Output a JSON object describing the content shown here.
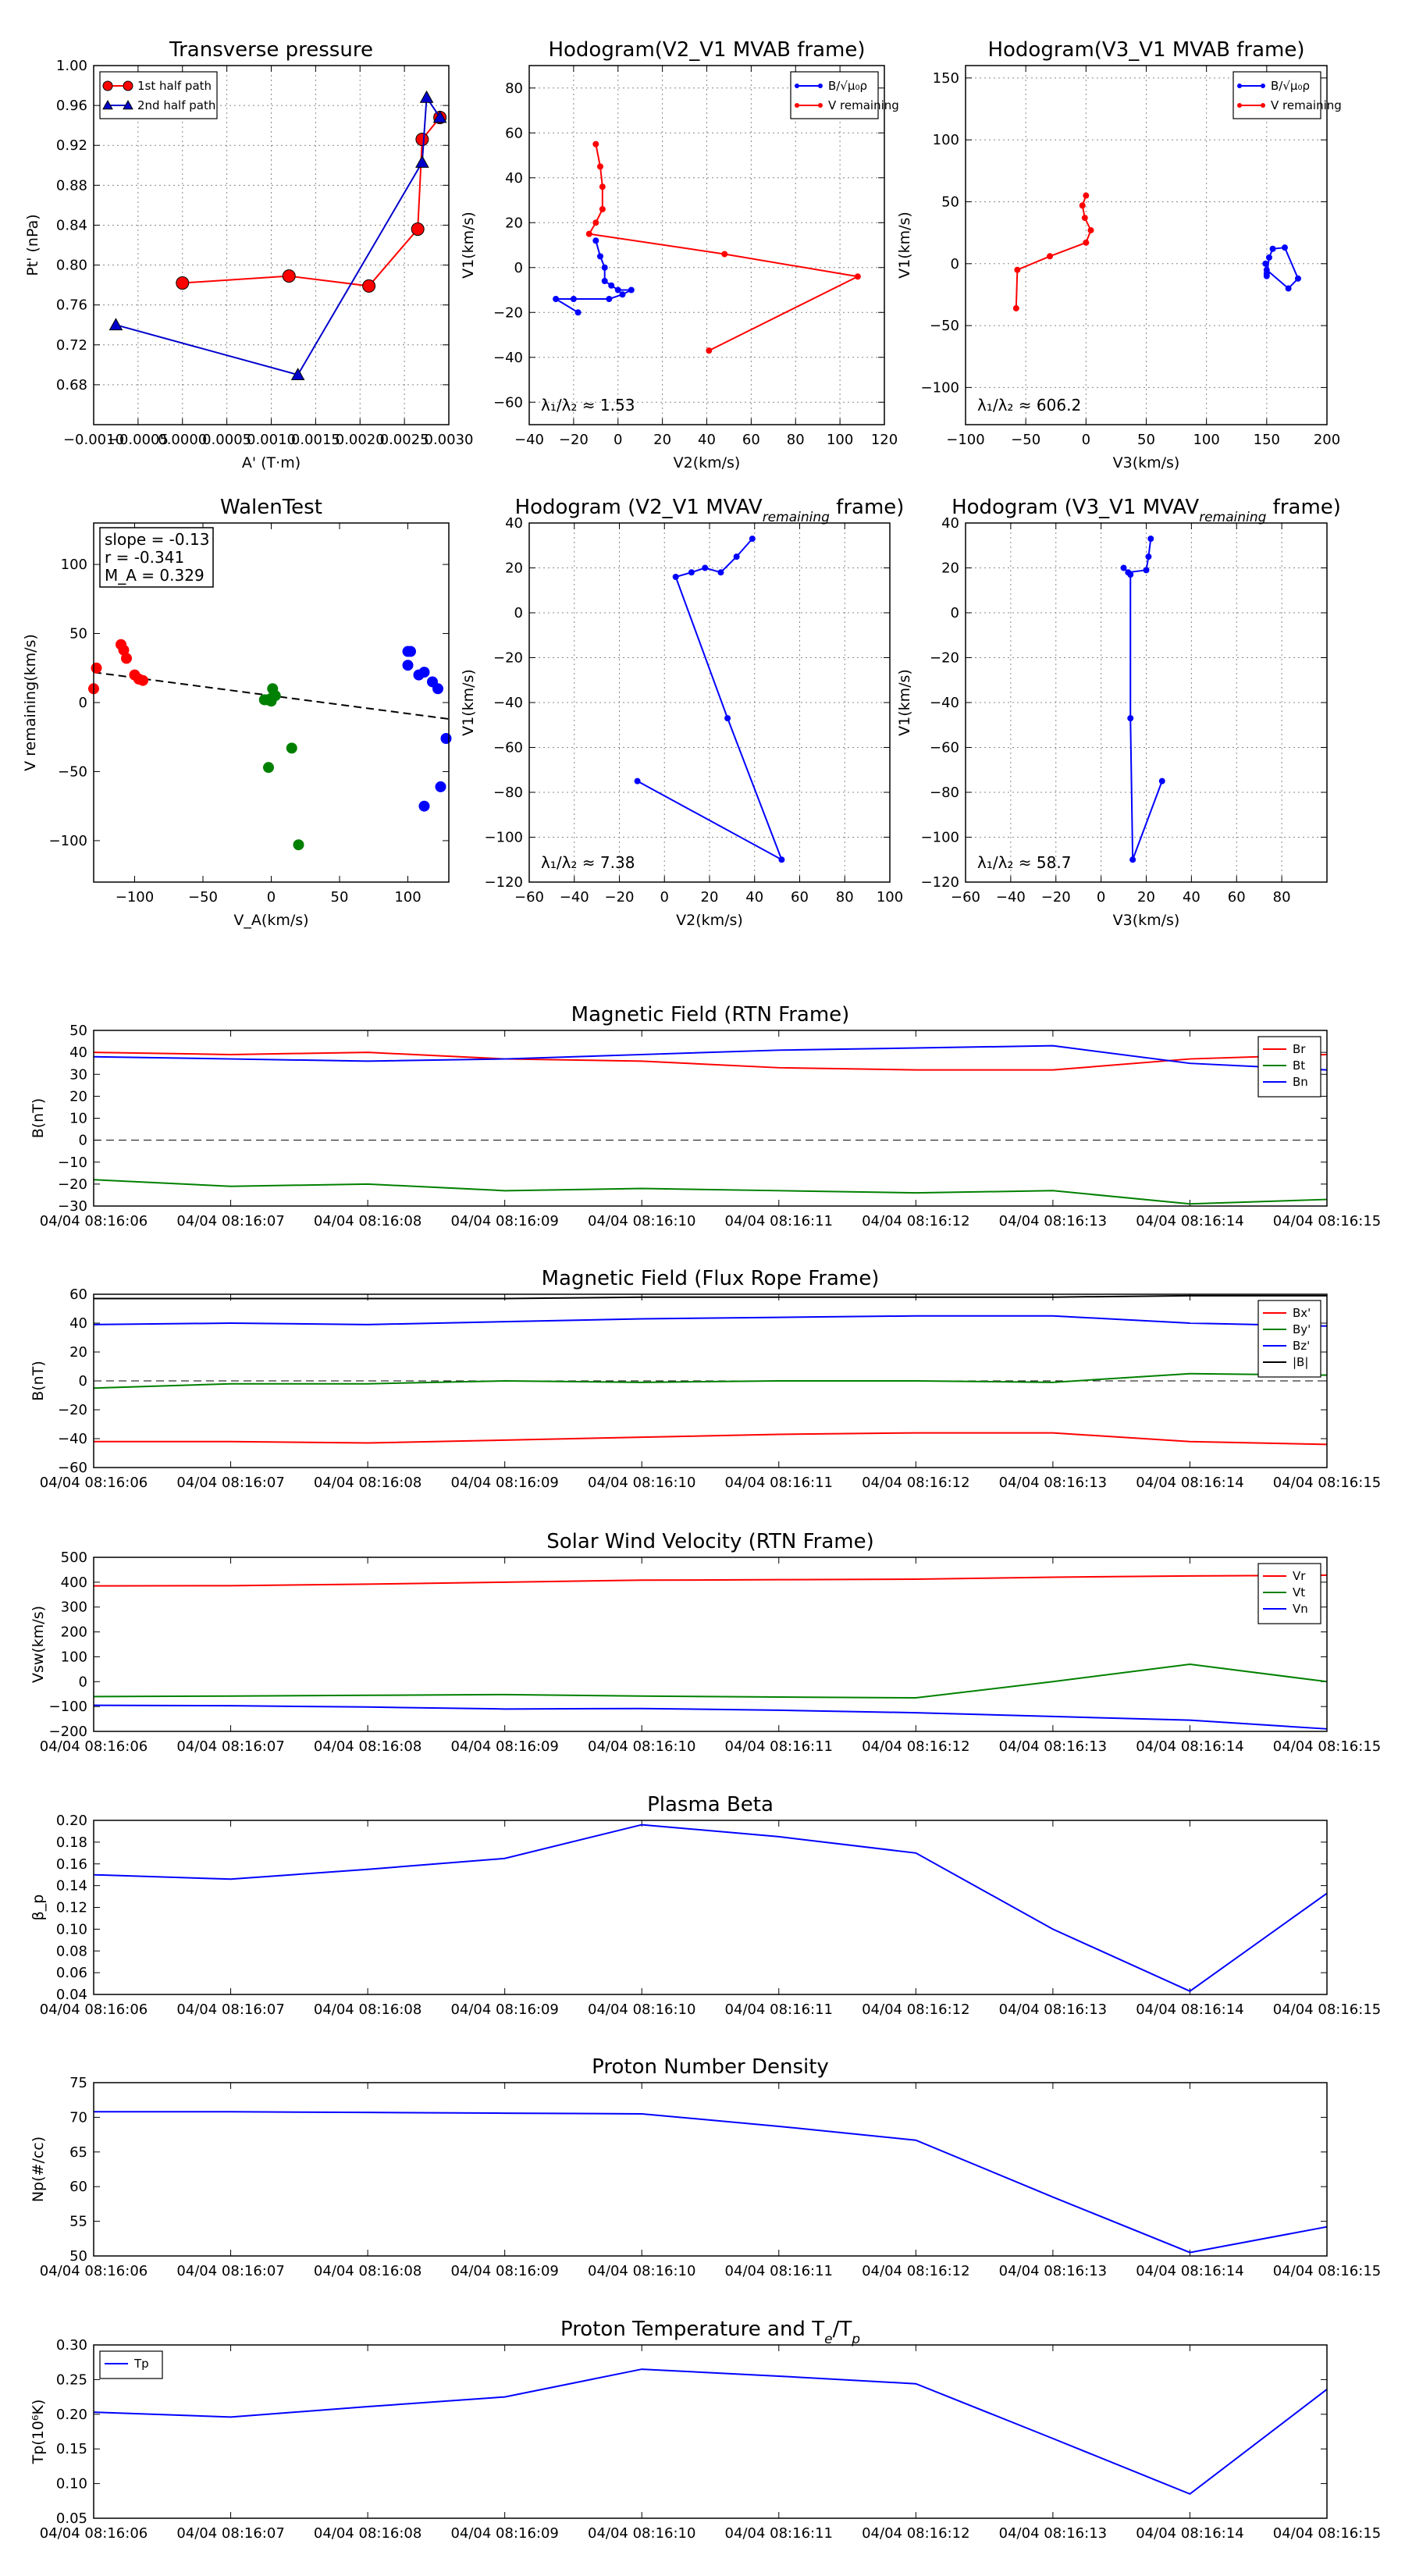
{
  "figure": {
    "background": "#ffffff"
  },
  "chart_data": [
    {
      "id": "transverse_pressure",
      "type": "line",
      "title": "Transverse pressure",
      "xlabel": "A' (T·m)",
      "ylabel": "Pt' (nPa)",
      "xlim": [
        -0.001,
        0.003
      ],
      "ylim": [
        0.64,
        1.0
      ],
      "xticks": [
        -0.001,
        -0.0005,
        0.0,
        0.0005,
        0.001,
        0.0015,
        0.002,
        0.0025,
        0.003
      ],
      "xtick_labels": [
        "−0.0010",
        "−0.0005",
        "0.0000",
        "0.0005",
        "0.0010",
        "0.0015",
        "0.0020",
        "0.0025",
        "0.0030"
      ],
      "yticks": [
        0.68,
        0.72,
        0.76,
        0.8,
        0.84,
        0.88,
        0.92,
        0.96,
        1.0
      ],
      "ytick_labels": [
        "0.68",
        "0.72",
        "0.76",
        "0.80",
        "0.84",
        "0.88",
        "0.92",
        "0.96",
        "1.00"
      ],
      "grid": true,
      "legend_position": "top-left",
      "series": [
        {
          "name": "1st half path",
          "color": "#ff0000",
          "marker": "circle",
          "x": [
            0.0,
            0.0012,
            0.0021,
            0.00265,
            0.0027,
            0.0029
          ],
          "y": [
            0.782,
            0.789,
            0.779,
            0.836,
            0.926,
            0.948
          ]
        },
        {
          "name": "2nd half path",
          "color": "#0000cc",
          "marker": "triangle",
          "x": [
            0.0029,
            0.00275,
            0.0027,
            0.0013,
            -0.00075
          ],
          "y": [
            0.948,
            0.968,
            0.903,
            0.69,
            0.74
          ]
        }
      ]
    },
    {
      "id": "hodogram_v2_v1_mvab",
      "type": "line",
      "title": "Hodogram(V2_V1 MVAB frame)",
      "xlabel": "V2(km/s)",
      "ylabel": "V1(km/s)",
      "xlim": [
        -40,
        120
      ],
      "ylim": [
        -70,
        90
      ],
      "xticks": [
        -40,
        -20,
        0,
        20,
        40,
        60,
        80,
        100,
        120
      ],
      "yticks": [
        -60,
        -40,
        -20,
        0,
        20,
        40,
        60,
        80
      ],
      "grid": true,
      "legend_position": "top-right",
      "annotation": "λ₁/λ₂ ≈ 1.53",
      "series": [
        {
          "name": "B/√μ₀ρ",
          "color": "#0000ff",
          "x": [
            -10,
            -8,
            -6,
            -6,
            -3,
            0,
            6,
            2,
            -4,
            -20,
            -28,
            -18
          ],
          "y": [
            12,
            5,
            0,
            -6,
            -8,
            -10,
            -10,
            -12,
            -14,
            -14,
            -14,
            -20
          ]
        },
        {
          "name": "V remaining",
          "color": "#ff0000",
          "x": [
            -10,
            -8,
            -7,
            -7,
            -10,
            -13,
            48,
            108,
            41
          ],
          "y": [
            55,
            45,
            36,
            26,
            20,
            15,
            6,
            -4,
            -37
          ]
        }
      ]
    },
    {
      "id": "hodogram_v3_v1_mvab",
      "type": "line",
      "title": "Hodogram(V3_V1 MVAB frame)",
      "xlabel": "V3(km/s)",
      "ylabel": "V1(km/s)",
      "xlim": [
        -100,
        200
      ],
      "ylim": [
        -130,
        160
      ],
      "xticks": [
        -100,
        -50,
        0,
        50,
        100,
        150,
        200
      ],
      "yticks": [
        -100,
        -50,
        0,
        50,
        100,
        150
      ],
      "grid": true,
      "legend_position": "top-right",
      "annotation": "λ₁/λ₂ ≈ 606.2",
      "series": [
        {
          "name": "B/√μ₀ρ",
          "color": "#0000ff",
          "x": [
            150,
            152,
            155,
            165,
            176,
            168,
            150,
            149,
            150
          ],
          "y": [
            -10,
            5,
            12,
            13,
            -12,
            -20,
            -5,
            0,
            -8
          ]
        },
        {
          "name": "V remaining",
          "color": "#ff0000",
          "x": [
            0,
            -3,
            -1,
            4,
            0,
            -30,
            -57,
            -58
          ],
          "y": [
            55,
            47,
            37,
            27,
            17,
            6,
            -5,
            -36
          ]
        }
      ]
    },
    {
      "id": "walen_test",
      "type": "scatter",
      "title": "WalenTest",
      "xlabel": "V_A(km/s)",
      "ylabel": "V remaining(km/s)",
      "xlim": [
        -130,
        130
      ],
      "ylim": [
        -130,
        130
      ],
      "xticks": [
        -100,
        -50,
        0,
        50,
        100
      ],
      "yticks": [
        -100,
        -50,
        0,
        50,
        100
      ],
      "grid": false,
      "annotation_lines": [
        "slope = -0.13",
        "r = -0.341",
        "M_A = 0.329"
      ],
      "fit_line": {
        "slope": -0.13,
        "intercept": 5
      },
      "series": [
        {
          "name": "red",
          "color": "#ff0000",
          "x": [
            -128,
            -130,
            -110,
            -108,
            -106,
            -100,
            -97,
            -94
          ],
          "y": [
            25,
            10,
            42,
            38,
            32,
            20,
            17,
            16
          ]
        },
        {
          "name": "green",
          "color": "#008000",
          "x": [
            -5,
            -3,
            0,
            1,
            2,
            0,
            3,
            15,
            -2,
            20
          ],
          "y": [
            2,
            2,
            1,
            10,
            5,
            3,
            5,
            -33,
            -47,
            -103
          ]
        },
        {
          "name": "blue",
          "color": "#0000ff",
          "x": [
            100,
            102,
            100,
            108,
            112,
            118,
            122,
            128,
            112,
            124
          ],
          "y": [
            37,
            37,
            27,
            20,
            22,
            15,
            10,
            -26,
            -75,
            -61
          ]
        }
      ]
    },
    {
      "id": "hodogram_v2_v1_mvav",
      "type": "line",
      "title": "Hodogram (V2_V1 MVAV",
      "title_sub": "remaining",
      "title_tail": " frame)",
      "xlabel": "V2(km/s)",
      "ylabel": "V1(km/s)",
      "xlim": [
        -60,
        100
      ],
      "ylim": [
        -120,
        40
      ],
      "xticks": [
        -60,
        -40,
        -20,
        0,
        20,
        40,
        60,
        80,
        100
      ],
      "yticks": [
        -120,
        -100,
        -80,
        -60,
        -40,
        -20,
        0,
        20,
        40
      ],
      "grid": true,
      "annotation": "λ₁/λ₂ ≈ 7.38",
      "series": [
        {
          "name": "hodogram",
          "color": "#0000ff",
          "x": [
            39,
            32,
            25,
            18,
            12,
            5,
            28,
            52,
            -12
          ],
          "y": [
            33,
            25,
            18,
            20,
            18,
            16,
            -47,
            -110,
            -75
          ]
        }
      ]
    },
    {
      "id": "hodogram_v3_v1_mvav",
      "type": "line",
      "title": "Hodogram (V3_V1 MVAV",
      "title_sub": "remaining",
      "title_tail": " frame)",
      "xlabel": "V3(km/s)",
      "ylabel": "V1(km/s)",
      "xlim": [
        -60,
        100
      ],
      "ylim": [
        -120,
        40
      ],
      "xticks": [
        -60,
        -40,
        -20,
        0,
        20,
        40,
        60,
        80
      ],
      "yticks": [
        -120,
        -100,
        -80,
        -60,
        -40,
        -20,
        0,
        20,
        40
      ],
      "grid": true,
      "annotation": "λ₁/λ₂ ≈ 58.7",
      "series": [
        {
          "name": "hodogram",
          "color": "#0000ff",
          "x": [
            22,
            21,
            20,
            12,
            10,
            13,
            13,
            14,
            27
          ],
          "y": [
            33,
            25,
            19,
            18,
            20,
            17,
            -47,
            -110,
            -75
          ]
        }
      ]
    },
    {
      "id": "mag_rtn",
      "type": "line",
      "title": "Magnetic Field (RTN Frame)",
      "xlabel": "",
      "ylabel": "B(nT)",
      "categories": [
        "04/04 08:16:06",
        "04/04 08:16:07",
        "04/04 08:16:08",
        "04/04 08:16:09",
        "04/04 08:16:10",
        "04/04 08:16:11",
        "04/04 08:16:12",
        "04/04 08:16:13",
        "04/04 08:16:14",
        "04/04 08:16:15"
      ],
      "ylim": [
        -30,
        50
      ],
      "yticks": [
        -30,
        -20,
        -10,
        0,
        10,
        20,
        30,
        40,
        50
      ],
      "zero_line": true,
      "legend_position": "top-right",
      "series": [
        {
          "name": "Br",
          "color": "#ff0000",
          "values": [
            40,
            39,
            40,
            37,
            36,
            33,
            32,
            32,
            37,
            39
          ]
        },
        {
          "name": "Bt",
          "color": "#008000",
          "values": [
            -18,
            -21,
            -20,
            -23,
            -22,
            -23,
            -24,
            -23,
            -29,
            -27
          ]
        },
        {
          "name": "Bn",
          "color": "#0000ff",
          "values": [
            38,
            37,
            36,
            37,
            39,
            41,
            42,
            43,
            35,
            32
          ]
        }
      ]
    },
    {
      "id": "mag_fluxrope",
      "type": "line",
      "title": "Magnetic Field (Flux Rope Frame)",
      "xlabel": "",
      "ylabel": "B(nT)",
      "categories": [
        "04/04 08:16:06",
        "04/04 08:16:07",
        "04/04 08:16:08",
        "04/04 08:16:09",
        "04/04 08:16:10",
        "04/04 08:16:11",
        "04/04 08:16:12",
        "04/04 08:16:13",
        "04/04 08:16:14",
        "04/04 08:16:15"
      ],
      "ylim": [
        -60,
        60
      ],
      "yticks": [
        -60,
        -40,
        -20,
        0,
        20,
        40,
        60
      ],
      "zero_line": true,
      "legend_position": "top-right",
      "series": [
        {
          "name": "Bx'",
          "color": "#ff0000",
          "values": [
            -42,
            -42,
            -43,
            -41,
            -39,
            -37,
            -36,
            -36,
            -42,
            -44
          ]
        },
        {
          "name": "By'",
          "color": "#008000",
          "values": [
            -5,
            -2,
            -2,
            0,
            -1,
            0,
            0,
            -1,
            5,
            4
          ]
        },
        {
          "name": "Bz'",
          "color": "#0000ff",
          "values": [
            39,
            40,
            39,
            41,
            43,
            44,
            45,
            45,
            40,
            38
          ]
        },
        {
          "name": "|B|",
          "color": "#000000",
          "values": [
            57,
            57,
            57,
            57,
            58,
            58,
            58,
            58,
            59,
            59
          ]
        }
      ]
    },
    {
      "id": "solar_wind_velocity",
      "type": "line",
      "title": "Solar Wind Velocity (RTN Frame)",
      "xlabel": "",
      "ylabel": "Vsw(km/s)",
      "categories": [
        "04/04 08:16:06",
        "04/04 08:16:07",
        "04/04 08:16:08",
        "04/04 08:16:09",
        "04/04 08:16:10",
        "04/04 08:16:11",
        "04/04 08:16:12",
        "04/04 08:16:13",
        "04/04 08:16:14",
        "04/04 08:16:15"
      ],
      "ylim": [
        -200,
        500
      ],
      "yticks": [
        -200,
        -100,
        0,
        100,
        200,
        300,
        400,
        500
      ],
      "legend_position": "top-right",
      "series": [
        {
          "name": "Vr",
          "color": "#ff0000",
          "values": [
            385,
            386,
            392,
            400,
            408,
            410,
            412,
            420,
            425,
            428
          ]
        },
        {
          "name": "Vt",
          "color": "#008000",
          "values": [
            -60,
            -58,
            -55,
            -52,
            -58,
            -62,
            -65,
            0,
            70,
            0
          ]
        },
        {
          "name": "Vn",
          "color": "#0000ff",
          "values": [
            -95,
            -97,
            -102,
            -110,
            -108,
            -115,
            -125,
            -140,
            -155,
            -190
          ]
        }
      ]
    },
    {
      "id": "plasma_beta",
      "type": "line",
      "title": "Plasma Beta",
      "xlabel": "",
      "ylabel": "β_p",
      "categories": [
        "04/04 08:16:06",
        "04/04 08:16:07",
        "04/04 08:16:08",
        "04/04 08:16:09",
        "04/04 08:16:10",
        "04/04 08:16:11",
        "04/04 08:16:12",
        "04/04 08:16:13",
        "04/04 08:16:14",
        "04/04 08:16:15"
      ],
      "ylim": [
        0.04,
        0.2
      ],
      "yticks": [
        0.04,
        0.06,
        0.08,
        0.1,
        0.12,
        0.14,
        0.16,
        0.18,
        0.2
      ],
      "ytick_labels": [
        "0.04",
        "0.06",
        "0.08",
        "0.10",
        "0.12",
        "0.14",
        "0.16",
        "0.18",
        "0.20"
      ],
      "series": [
        {
          "name": "beta",
          "color": "#0000ff",
          "values": [
            0.15,
            0.146,
            0.155,
            0.165,
            0.196,
            0.185,
            0.17,
            0.1,
            0.043,
            0.133
          ]
        }
      ]
    },
    {
      "id": "proton_density",
      "type": "line",
      "title": "Proton Number Density",
      "xlabel": "",
      "ylabel": "Np(#/cc)",
      "categories": [
        "04/04 08:16:06",
        "04/04 08:16:07",
        "04/04 08:16:08",
        "04/04 08:16:09",
        "04/04 08:16:10",
        "04/04 08:16:11",
        "04/04 08:16:12",
        "04/04 08:16:13",
        "04/04 08:16:14",
        "04/04 08:16:15"
      ],
      "ylim": [
        50,
        75
      ],
      "yticks": [
        50,
        55,
        60,
        65,
        70,
        75
      ],
      "series": [
        {
          "name": "Np",
          "color": "#0000ff",
          "values": [
            70.8,
            70.8,
            70.7,
            70.6,
            70.5,
            68.7,
            66.7,
            58.5,
            50.5,
            54.2
          ]
        }
      ]
    },
    {
      "id": "proton_temperature",
      "type": "line",
      "title": "Proton Temperature and T",
      "title_sub": "e",
      "title_tail": "/T",
      "title_sub2": "p",
      "xlabel": "",
      "ylabel": "Tp(10⁶K)",
      "categories": [
        "04/04 08:16:06",
        "04/04 08:16:07",
        "04/04 08:16:08",
        "04/04 08:16:09",
        "04/04 08:16:10",
        "04/04 08:16:11",
        "04/04 08:16:12",
        "04/04 08:16:13",
        "04/04 08:16:14",
        "04/04 08:16:15"
      ],
      "ylim": [
        0.05,
        0.3
      ],
      "yticks": [
        0.05,
        0.1,
        0.15,
        0.2,
        0.25,
        0.3
      ],
      "ytick_labels": [
        "0.05",
        "0.10",
        "0.15",
        "0.20",
        "0.25",
        "0.30"
      ],
      "legend_position": "top-left",
      "series": [
        {
          "name": "Tp",
          "color": "#0000ff",
          "values": [
            0.203,
            0.196,
            0.211,
            0.225,
            0.265,
            0.255,
            0.244,
            0.165,
            0.085,
            0.236
          ]
        }
      ]
    }
  ]
}
